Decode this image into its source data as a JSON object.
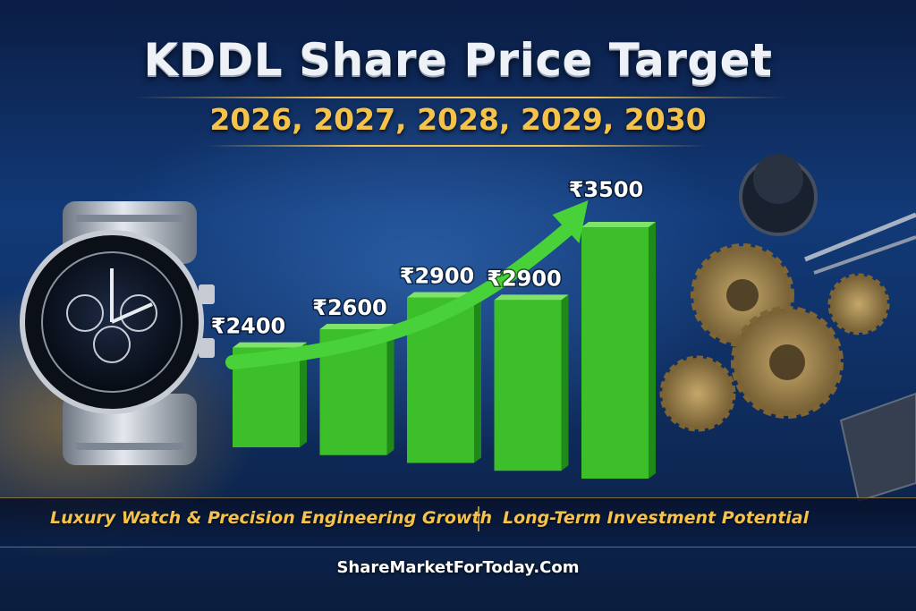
{
  "header": {
    "title": "KDDL Share Price Target",
    "subtitle": "2026, 2027, 2028, 2029, 2030"
  },
  "taglines": {
    "left": "Luxury Watch & Precision Engineering Growth",
    "right": "Long-Term Investment Potential"
  },
  "footer": {
    "site": "ShareMarketForToday.Com"
  },
  "colors": {
    "bar": "#3dbf2a",
    "bar_dark": "#1f8a1a",
    "arrow": "#49d13a",
    "gold": "#f5c24a"
  },
  "icons": {
    "left_visual": "wristwatch-icon",
    "right_visual": "watch-gears-icon"
  },
  "chart_data": {
    "type": "bar",
    "title": "KDDL Share Price Target",
    "categories": [
      "2026",
      "2027",
      "2028",
      "2029",
      "2030"
    ],
    "values": [
      2400,
      2600,
      2900,
      2900,
      3500
    ],
    "value_labels": [
      "₹2400",
      "₹2600",
      "₹2900",
      "₹2900",
      "₹3500"
    ],
    "category_labels_visible": false,
    "ylim": [
      1500,
      3600
    ],
    "grid": false,
    "legend": "none",
    "trend_arrow": true
  }
}
